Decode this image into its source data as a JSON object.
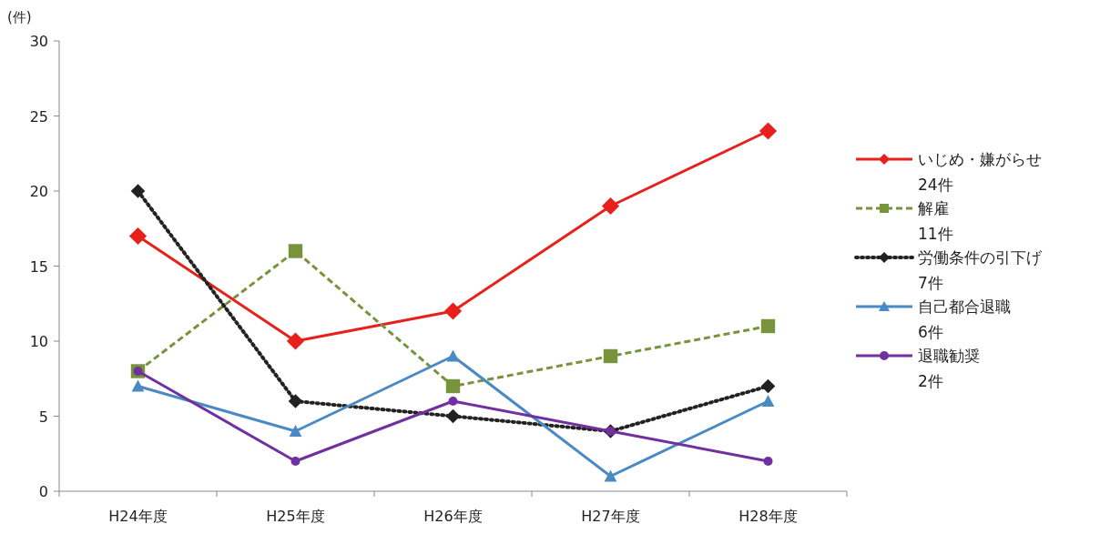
{
  "chart_data": {
    "type": "line",
    "ylabel": "(件)",
    "categories": [
      "H24年度",
      "H25年度",
      "H26年度",
      "H27年度",
      "H28年度"
    ],
    "ylim": [
      0,
      30
    ],
    "yticks": [
      0,
      5,
      10,
      15,
      20,
      25,
      30
    ],
    "grid": false,
    "legend": "right",
    "series": [
      {
        "name": "いじめ・嫌がらせ\n24件",
        "color": "#e8201c",
        "marker": "diamond",
        "line_style": "solid",
        "values": [
          17,
          10,
          12,
          19,
          24
        ]
      },
      {
        "name": "解雇\n11件",
        "color": "#77933c",
        "marker": "square",
        "line_style": "dashed",
        "values": [
          8,
          16,
          7,
          9,
          11
        ]
      },
      {
        "name": "労働条件の引下げ\n7件",
        "color": "#222222",
        "marker": "diamond",
        "line_style": "dotted",
        "values": [
          20,
          6,
          5,
          4,
          7
        ]
      },
      {
        "name": "自己都合退職\n6件",
        "color": "#4a8ac4",
        "marker": "triangle",
        "line_style": "solid",
        "values": [
          7,
          4,
          9,
          1,
          6
        ]
      },
      {
        "name": "退職勧奨\n2件",
        "color": "#7030a0",
        "marker": "circle",
        "line_style": "solid",
        "values": [
          8,
          2,
          6,
          4,
          2
        ]
      }
    ]
  }
}
